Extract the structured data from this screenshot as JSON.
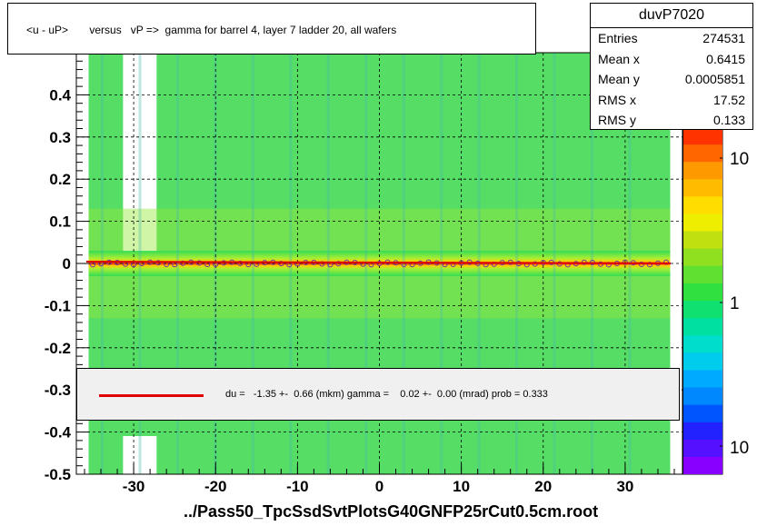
{
  "title": "<u - uP>       versus   vP =>  gamma for barrel 4, layer 7 ladder 20, all wafers",
  "stats": {
    "name": "duvP7020",
    "rows": [
      {
        "key": "Entries",
        "value": "274531"
      },
      {
        "key": "Mean x",
        "value": "0.6415"
      },
      {
        "key": "Mean y",
        "value": "0.0005851"
      },
      {
        "key": "RMS x",
        "value": "17.52"
      },
      {
        "key": "RMS y",
        "value": "0.133"
      }
    ]
  },
  "fit_text": "du =   -1.35 +-  0.66 (mkm) gamma =    0.02 +-  0.00 (mrad) prob = 0.333",
  "footer": "../Pass50_TpcSsdSvtPlotsG40GNFP25rCut0.5cm.root",
  "colors": {
    "fit_line": "#e00000",
    "frame": "#000000",
    "panel": "#f0f0f0"
  },
  "chart_data": {
    "type": "heatmap",
    "title": "<u - uP>       versus   vP =>  gamma for barrel 4, layer 7 ladder 20, all wafers",
    "xlim": [
      -37,
      37
    ],
    "ylim": [
      -0.5,
      0.5
    ],
    "x_ticks": [
      "-30",
      "-20",
      "-10",
      "0",
      "10",
      "20",
      "30"
    ],
    "x_tick_values": [
      -30,
      -20,
      -10,
      0,
      10,
      20,
      30
    ],
    "y_ticks": [
      "0.4",
      "0.3",
      "0.2",
      "0.1",
      "0",
      "-0.1",
      "-0.2",
      "-0.3",
      "-0.4",
      "-0.5"
    ],
    "y_tick_values": [
      0.4,
      0.3,
      0.2,
      0.1,
      0,
      -0.1,
      -0.2,
      -0.3,
      -0.4,
      -0.5
    ],
    "z_scale": "log",
    "z_ticks": [
      "10",
      "1",
      "10"
    ],
    "grid": true,
    "fit": {
      "du_mkm": -1.35,
      "du_err": 0.66,
      "gamma_mrad": 0.02,
      "gamma_err": 0.0,
      "prob": 0.333
    }
  }
}
